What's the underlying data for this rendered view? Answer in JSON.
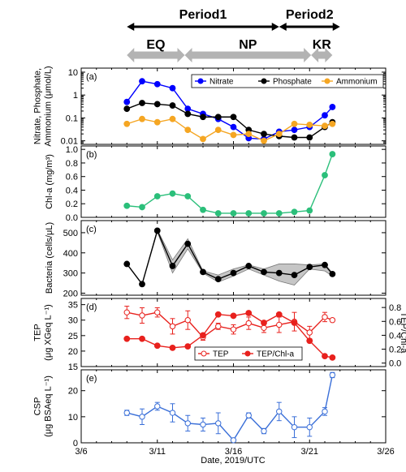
{
  "periods": [
    {
      "label": "Period1",
      "start": 9,
      "end": 19
    },
    {
      "label": "Period2",
      "start": 19,
      "end": 23
    }
  ],
  "phases": [
    {
      "label": "EQ",
      "start": 9,
      "end": 12.8
    },
    {
      "label": "NP",
      "start": 12.8,
      "end": 21.1
    },
    {
      "label": "KR",
      "start": 21.1,
      "end": 22.5
    }
  ],
  "x_axis": {
    "label": "Date, 2019/UTC",
    "range": [
      6,
      26
    ],
    "ticks": [
      6,
      11,
      16,
      21,
      26
    ],
    "tick_labels": [
      "3/6",
      "3/11",
      "3/16",
      "3/21",
      "3/26"
    ],
    "minor_step": 1
  },
  "chart_data": [
    {
      "id": "a",
      "type": "line",
      "panel_label": "(a)",
      "ylabel_lines": [
        "Nitrate, Phosphate,",
        "Ammonium (μmol/L)"
      ],
      "yscale": "log",
      "ylim": [
        0.007,
        15
      ],
      "yticks": [
        0.01,
        0.1,
        1,
        10
      ],
      "ytick_labels": [
        "0.01",
        "0.1",
        "1",
        "10"
      ],
      "legend": "top-right",
      "series": [
        {
          "name": "Nitrate",
          "color": "#0000ff",
          "x": [
            9,
            10,
            11,
            12,
            13,
            14,
            15,
            16,
            17,
            18,
            19,
            20,
            21,
            22,
            22.5
          ],
          "y": [
            0.5,
            4.0,
            3.0,
            2.0,
            0.25,
            0.15,
            0.09,
            0.04,
            0.013,
            0.012,
            0.025,
            0.03,
            0.04,
            0.13,
            0.3
          ]
        },
        {
          "name": "Phosphate",
          "color": "#000000",
          "x": [
            9,
            10,
            11,
            12,
            13,
            14,
            15,
            16,
            17,
            18,
            19,
            20,
            21,
            22,
            22.5
          ],
          "y": [
            0.25,
            0.45,
            0.4,
            0.35,
            0.15,
            0.11,
            0.11,
            0.11,
            0.03,
            0.02,
            0.016,
            0.014,
            0.014,
            0.04,
            0.065
          ]
        },
        {
          "name": "Ammonium",
          "color": "#f5a623",
          "x": [
            9,
            10,
            11,
            12,
            13,
            14,
            15,
            16,
            17,
            18,
            19,
            20,
            21,
            22,
            22.5
          ],
          "y": [
            0.055,
            0.09,
            0.065,
            0.09,
            0.03,
            0.012,
            0.03,
            0.018,
            0.02,
            0.01,
            0.02,
            0.055,
            0.05,
            0.045,
            0.055
          ]
        }
      ]
    },
    {
      "id": "b",
      "type": "line",
      "panel_label": "(b)",
      "ylabel_lines": [
        "Chl-a (mg/m³)"
      ],
      "ylim": [
        0,
        1.05
      ],
      "yticks": [
        0,
        0.2,
        0.4,
        0.6,
        0.8,
        1.0
      ],
      "ytick_labels": [
        "0.0",
        "0.2",
        "0.4",
        "0.6",
        "0.8",
        "1.0"
      ],
      "series": [
        {
          "name": "Chl-a",
          "color": "#2bbf7a",
          "x": [
            9,
            10,
            11,
            12,
            13,
            14,
            15,
            16,
            17,
            18,
            19,
            20,
            21,
            22,
            22.5
          ],
          "y": [
            0.17,
            0.15,
            0.31,
            0.35,
            0.31,
            0.11,
            0.06,
            0.06,
            0.06,
            0.06,
            0.06,
            0.08,
            0.1,
            0.62,
            0.93
          ]
        }
      ]
    },
    {
      "id": "c",
      "type": "line",
      "panel_label": "(c)",
      "ylabel_lines": [
        "Bacteria (cells/μL)"
      ],
      "ylim": [
        190,
        560
      ],
      "yticks": [
        200,
        300,
        400,
        500
      ],
      "ytick_labels": [
        "200",
        "300",
        "400",
        "500"
      ],
      "series": [
        {
          "name": "Bacteria",
          "color": "#000000",
          "x": [
            9,
            10,
            11,
            12,
            13,
            14,
            15,
            16,
            17,
            18,
            19,
            20,
            21,
            22,
            22.5
          ],
          "y": [
            345,
            245,
            510,
            335,
            445,
            305,
            270,
            300,
            335,
            305,
            300,
            290,
            330,
            340,
            295
          ],
          "band_low": [
            345,
            245,
            505,
            300,
            420,
            300,
            255,
            285,
            320,
            290,
            260,
            240,
            320,
            310,
            285
          ],
          "band_high": [
            345,
            245,
            515,
            365,
            470,
            310,
            290,
            320,
            340,
            320,
            345,
            345,
            340,
            345,
            300
          ]
        }
      ]
    },
    {
      "id": "d",
      "type": "line",
      "panel_label": "(d)",
      "ylabel_lines": [
        "TEP",
        "(μg XGeq L⁻¹)"
      ],
      "ylim": [
        15,
        37
      ],
      "yticks": [
        15,
        20,
        25,
        30,
        35
      ],
      "ytick_labels": [
        "15",
        "20",
        "25",
        "30",
        "35"
      ],
      "right_axis": {
        "label": "TEP/Chl-a",
        "ylim": [
          -0.05,
          0.93
        ],
        "yticks": [
          0,
          0.2,
          0.4,
          0.6,
          0.8
        ],
        "ytick_labels": [
          "0.0",
          "0.2",
          "0.4",
          "0.6",
          "0.8"
        ]
      },
      "legend": "bottom-center",
      "series": [
        {
          "name": "TEP",
          "color": "#e8211d",
          "axis": "left",
          "marker": "open-circle",
          "x": [
            9,
            10,
            11,
            12,
            13,
            14,
            15,
            16,
            17,
            18,
            19,
            20,
            21,
            22,
            22.5
          ],
          "y": [
            32.5,
            31.5,
            32.5,
            28,
            30,
            24.5,
            28,
            27,
            29,
            27.5,
            28.5,
            29.5,
            26,
            31,
            30
          ],
          "err": [
            2,
            2.5,
            1.5,
            2.5,
            3,
            1,
            1,
            1.5,
            2,
            1.5,
            2.5,
            3,
            2,
            1.5,
            0.5
          ]
        },
        {
          "name": "TEP/Chl-a",
          "color": "#e8211d",
          "axis": "right",
          "marker": "filled-circle",
          "x": [
            9,
            10,
            11,
            12,
            13,
            14,
            15,
            16,
            17,
            18,
            19,
            20,
            21,
            22,
            22.5
          ],
          "y": [
            0.35,
            0.35,
            0.25,
            0.22,
            0.24,
            0.4,
            0.7,
            0.68,
            0.72,
            0.58,
            0.7,
            0.58,
            0.32,
            0.1,
            0.08
          ]
        }
      ]
    },
    {
      "id": "e",
      "type": "line",
      "panel_label": "(e)",
      "ylabel_lines": [
        "CSP",
        "(μg BSAeq L⁻¹)"
      ],
      "ylim": [
        0,
        28
      ],
      "yticks": [
        0,
        10,
        20
      ],
      "ytick_labels": [
        "0",
        "10",
        "20"
      ],
      "series": [
        {
          "name": "CSP",
          "color": "#3a6fd8",
          "marker": "open-circle",
          "x": [
            9,
            10,
            11,
            12,
            13,
            14,
            15,
            16,
            17,
            18,
            19,
            20,
            21,
            22,
            22.5
          ],
          "y": [
            11.5,
            10,
            14,
            11.5,
            7.5,
            7,
            7.5,
            1,
            10.5,
            4.5,
            12,
            6,
            6,
            12,
            26
          ],
          "err": [
            1,
            3,
            1.5,
            3.5,
            3,
            2.5,
            4,
            0.5,
            1,
            1,
            3.5,
            4,
            3.5,
            1.5,
            1
          ]
        }
      ]
    }
  ]
}
